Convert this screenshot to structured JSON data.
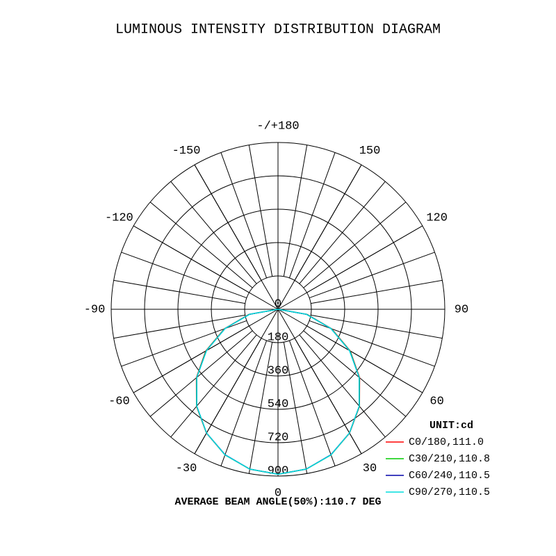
{
  "chart_data": {
    "type": "polar",
    "title": "LUMINOUS INTENSITY DISTRIBUTION DIAGRAM",
    "angles": [
      -90,
      -80,
      -70,
      -60,
      -50,
      -40,
      -30,
      -20,
      -10,
      0,
      10,
      20,
      30,
      40,
      50,
      60,
      70,
      80,
      90
    ],
    "series": [
      {
        "name": "C0/180,111.0",
        "color": "#ff0000",
        "values": [
          0,
          160,
          308,
          450,
          575,
          684,
          772,
          836,
          876,
          890,
          876,
          836,
          772,
          684,
          575,
          450,
          308,
          160,
          0
        ]
      },
      {
        "name": "C30/210,110.8",
        "color": "#00cc00",
        "values": [
          0,
          158,
          306,
          448,
          573,
          683,
          771,
          836,
          876,
          890,
          876,
          836,
          771,
          683,
          573,
          448,
          306,
          158,
          0
        ]
      },
      {
        "name": "C60/240,110.5",
        "color": "#0000aa",
        "values": [
          0,
          156,
          304,
          446,
          572,
          682,
          771,
          835,
          876,
          890,
          876,
          835,
          771,
          682,
          572,
          446,
          304,
          156,
          0
        ]
      },
      {
        "name": "C90/270,110.5",
        "color": "#00dede",
        "values": [
          0,
          155,
          304,
          445,
          572,
          682,
          771,
          836,
          876,
          890,
          876,
          836,
          771,
          682,
          572,
          445,
          304,
          155,
          0
        ]
      }
    ],
    "rlim": [
      0,
      900
    ],
    "rticks": [
      0,
      180,
      360,
      540,
      720,
      900
    ],
    "angle_ticks": [
      0,
      30,
      60,
      90,
      120,
      150,
      {
        "value": 180,
        "label": "-/+180"
      },
      -150,
      -120,
      -90,
      -60,
      -30
    ],
    "unit_label": "UNIT:cd",
    "footer": "AVERAGE BEAM ANGLE(50%):110.7 DEG"
  }
}
